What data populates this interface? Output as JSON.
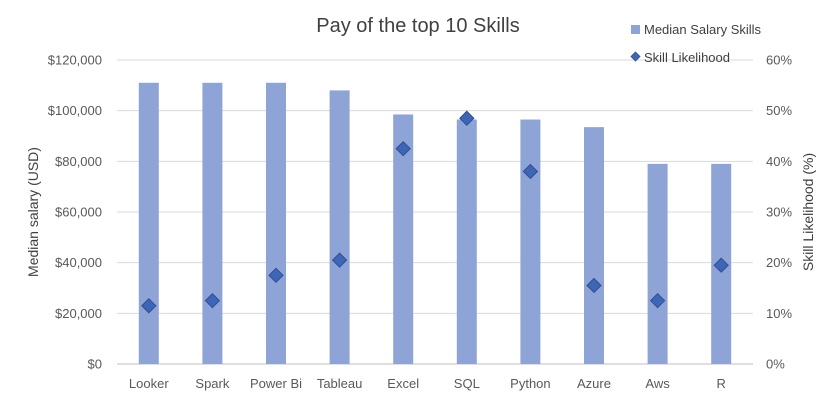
{
  "chart_data": {
    "type": "bar",
    "title": "Pay of the top 10 Skills",
    "categories": [
      "Looker",
      "Spark",
      "Power Bi",
      "Tableau",
      "Excel",
      "SQL",
      "Python",
      "Azure",
      "Aws",
      "R"
    ],
    "series": [
      {
        "name": "Median Salary Skills",
        "kind": "bar",
        "axis": "left",
        "color": "#8FA4D6",
        "values": [
          111000,
          111000,
          111000,
          108000,
          98500,
          96500,
          96500,
          93500,
          79000,
          79000
        ]
      },
      {
        "name": "Skill Likelihood",
        "kind": "scatter",
        "axis": "right",
        "marker": "diamond",
        "color": "#3E66B8",
        "values": [
          11.5,
          12.5,
          17.5,
          20.5,
          42.5,
          48.5,
          38.0,
          15.5,
          12.5,
          19.5
        ]
      }
    ],
    "ylabel": "Median salary (USD)",
    "ylim": [
      0,
      120000
    ],
    "yticks": [
      "$0",
      "$20,000",
      "$40,000",
      "$60,000",
      "$80,000",
      "$100,000",
      "$120,000"
    ],
    "y2label": "Skill Likelihood (%)",
    "y2lim": [
      0,
      60
    ],
    "y2ticks": [
      "0%",
      "10%",
      "20%",
      "30%",
      "40%",
      "50%",
      "60%"
    ],
    "grid": true,
    "gridColor": "#D9D9D9",
    "legend": "top-right"
  }
}
